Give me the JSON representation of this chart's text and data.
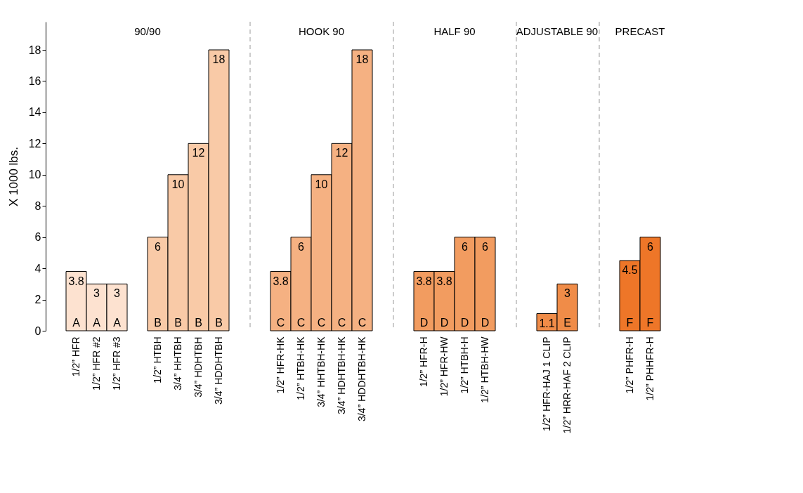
{
  "chart_data": [
    {
      "type": "bar",
      "title": "90/90",
      "ylabel": "X 1000 lbs.",
      "categories": [
        "1/2” HFR",
        "1/2” HFR #2",
        "1/2” HFR #3",
        null,
        "1/2” HTBH",
        "3/4” HHTBH",
        "3/4” HDHTBH",
        "3/4” HDDHTBH"
      ],
      "values": [
        3.8,
        3,
        3,
        null,
        6,
        10,
        12,
        18
      ],
      "colors": [
        "#fde2d0",
        "#fde2d0",
        "#fde2d0",
        "#fde2d0",
        "#f9caa7",
        "#f9caa7",
        "#f9caa7",
        "#f9caa7"
      ],
      "ylim": [
        0,
        19.8
      ],
      "yticks": [
        0,
        2,
        4,
        6,
        8,
        10,
        12,
        14,
        16,
        18
      ],
      "data_labels": true,
      "annotations": [
        {
          "text": "A",
          "x": "1/2” HFR",
          "y": 0
        },
        {
          "text": "A",
          "x": "1/2” HFR #2",
          "y": 0
        },
        {
          "text": "A",
          "x": "1/2” HFR #3",
          "y": 0
        },
        {
          "text": "B",
          "x": "1/2” HTBH",
          "y": 0
        },
        {
          "text": "B",
          "x": "3/4” HHTBH",
          "y": 0
        },
        {
          "text": "B",
          "x": "3/4” HDHTBH",
          "y": 0
        },
        {
          "text": "B",
          "x": "3/4” HDDHTBH",
          "y": 0
        }
      ]
    },
    {
      "type": "bar",
      "title": "HOOK 90",
      "categories": [
        "1/2” HFR-HK",
        "1/2” HTBH-HK",
        "3/4” HHTBH-HK",
        "3/4” HDHTBH-HK",
        "3/4” HDDHTBH-HK"
      ],
      "values": [
        3.8,
        6,
        10,
        12,
        18
      ],
      "colors": [
        "#f5b182",
        "#f5b182",
        "#f5b182",
        "#f5b182",
        "#f5b182"
      ],
      "tick_labels": "x",
      "data_labels": true,
      "annotations": [
        {
          "text": "C",
          "x": "1/2” HFR-HK",
          "y": 0
        },
        {
          "text": "C",
          "x": "1/2” HTBH-HK",
          "y": 0
        },
        {
          "text": "C",
          "x": "3/4” HHTBH-HK",
          "y": 0
        },
        {
          "text": "C",
          "x": "3/4” HDHTBH-HK",
          "y": 0
        },
        {
          "text": "C",
          "x": "3/4” HDDHTBH-HK",
          "y": 0
        }
      ]
    },
    {
      "type": "bar",
      "title": "HALF 90",
      "categories": [
        "1/2” HFR-H",
        "1/2” HFR-HW",
        "1/2” HTBH-H",
        "1/2” HTBH-HW"
      ],
      "values": [
        3.8,
        3.8,
        6,
        6
      ],
      "colors": [
        "#f29c60",
        "#f29c60",
        "#f29c60",
        "#f29c60"
      ],
      "tick_labels": "x",
      "data_labels": true,
      "annotations": [
        {
          "text": "D",
          "x": "1/2” HFR-H",
          "y": 0
        },
        {
          "text": "D",
          "x": "1/2” HFR-HW",
          "y": 0
        },
        {
          "text": "D",
          "x": "1/2” HTBH-H",
          "y": 0
        },
        {
          "text": "D",
          "x": "1/2” HTBH-HW",
          "y": 0
        }
      ]
    },
    {
      "type": "bar",
      "title": "ADJUSTABLE 90",
      "categories": [
        "1/2” HFR-HAJ 1 CLIP",
        "1/2” HRR-HAF 2 CLIP"
      ],
      "values": [
        1.1,
        3
      ],
      "colors": [
        "#f08c48",
        "#f08c48"
      ],
      "tick_labels": "x",
      "data_labels": true,
      "annotations": [
        {
          "text": "E",
          "x": "1/2” HRR-HAF 2 CLIP",
          "y": 0
        }
      ]
    },
    {
      "type": "bar",
      "title": "PRECAST",
      "categories": [
        "1/2” PHFR-H",
        "1/2” PHHFR-H"
      ],
      "values": [
        4.5,
        6
      ],
      "colors": [
        "#ee7628",
        "#ee7628"
      ],
      "tick_labels": "x",
      "data_labels": true,
      "annotations": [
        {
          "text": "F",
          "x": "1/2” PHFR-H",
          "y": 0
        },
        {
          "text": "F",
          "x": "1/2” PHHFR-H",
          "y": 0
        }
      ]
    }
  ]
}
